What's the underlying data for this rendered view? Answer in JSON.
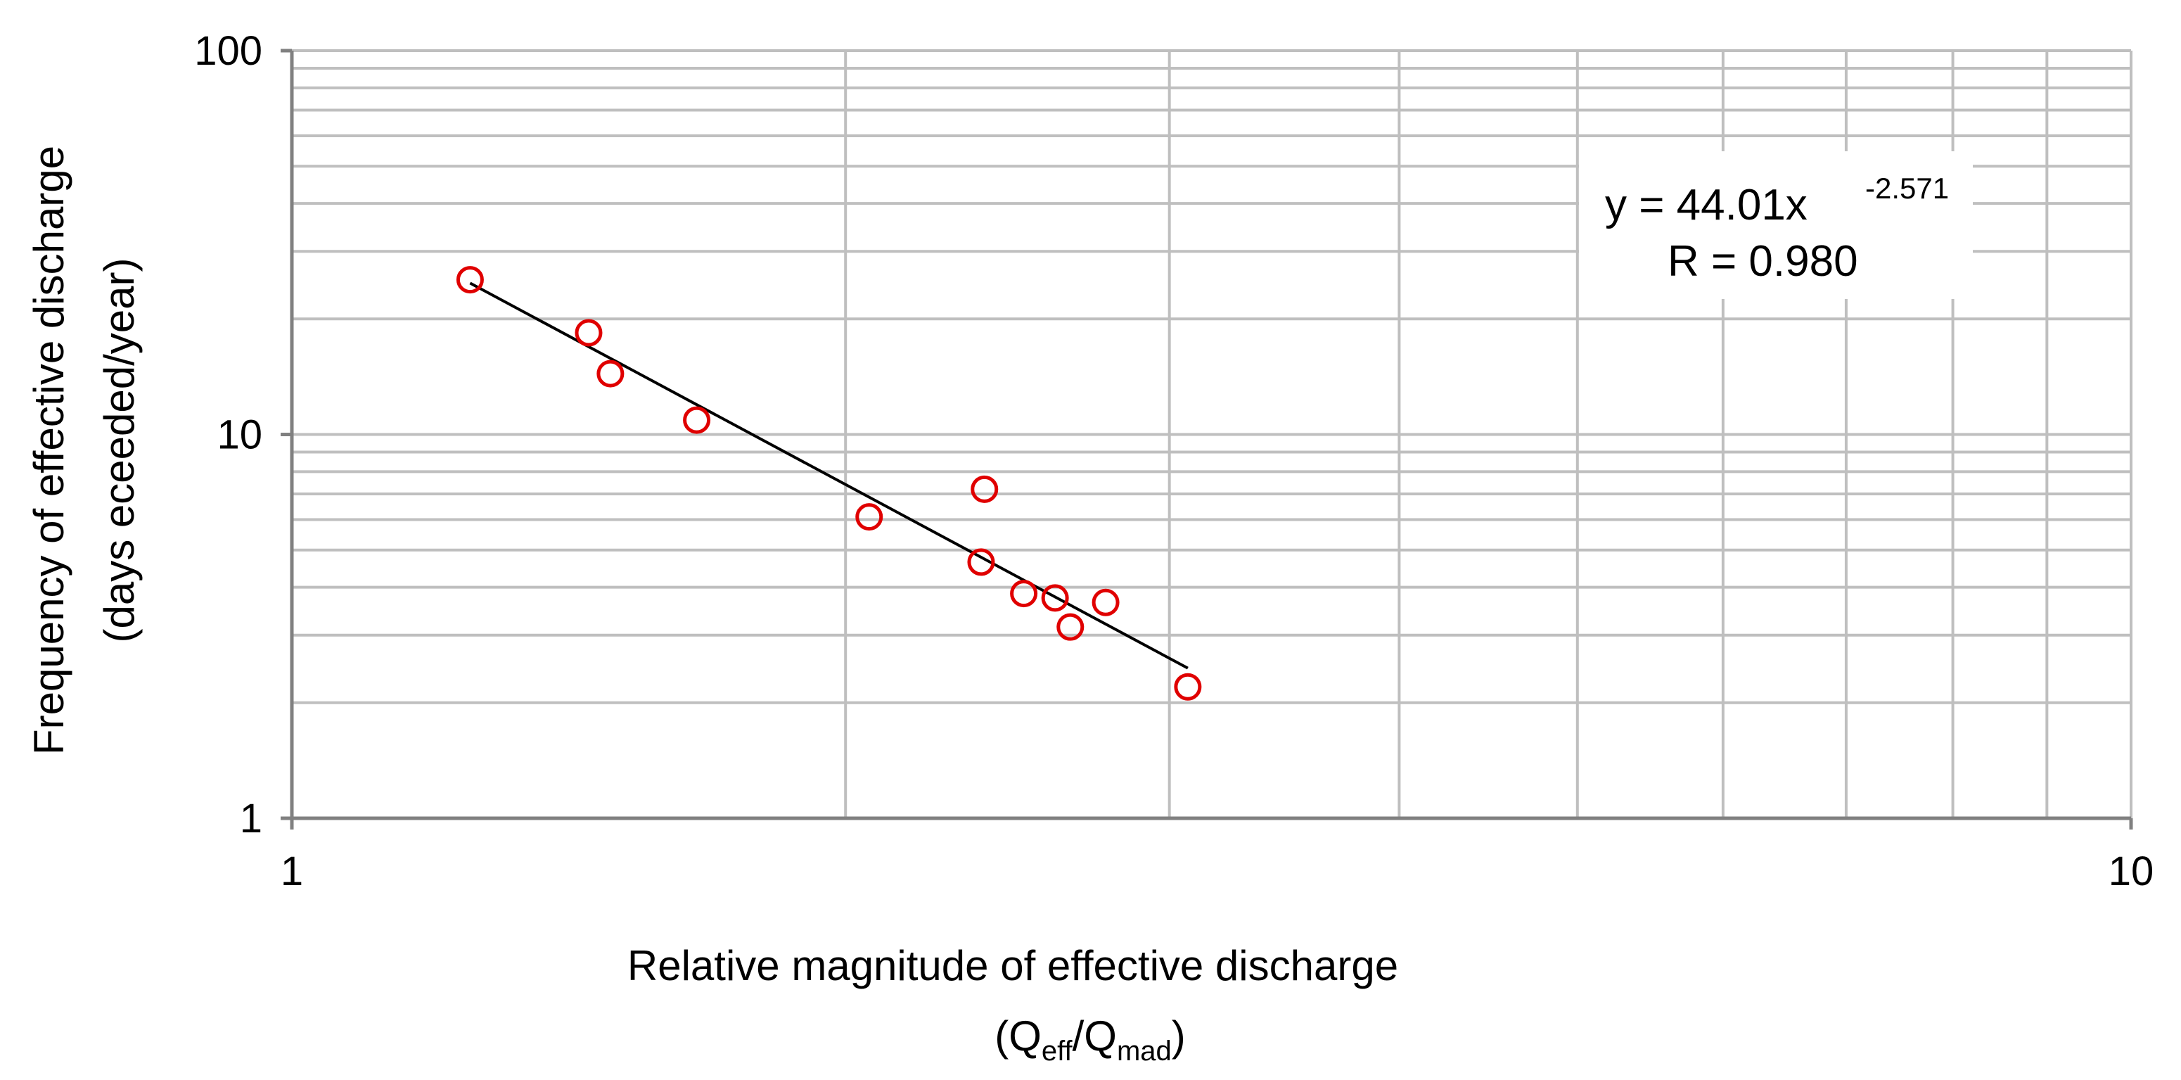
{
  "chart_data": {
    "type": "scatter",
    "x_scale": "log",
    "y_scale": "log",
    "xlim": [
      1,
      10
    ],
    "ylim": [
      1,
      100
    ],
    "x_ticks": [
      "1",
      "10"
    ],
    "y_ticks": [
      "1",
      "10",
      "100"
    ],
    "xlabel_line1": "Relative magnitude of effective discharge",
    "xlabel_line2": {
      "open": "(Q",
      "sub1": "eff",
      "mid": "/Q",
      "sub2": "mad",
      "close": ")"
    },
    "ylabel_line1": "Frequency of effective discharge",
    "ylabel_line2": "(days eceeded/year)",
    "grid": true,
    "points": [
      {
        "x": 1.25,
        "y": 25.3
      },
      {
        "x": 1.45,
        "y": 18.4
      },
      {
        "x": 1.49,
        "y": 14.4
      },
      {
        "x": 1.66,
        "y": 10.9
      },
      {
        "x": 2.06,
        "y": 6.1
      },
      {
        "x": 2.37,
        "y": 4.65
      },
      {
        "x": 2.38,
        "y": 7.2
      },
      {
        "x": 2.5,
        "y": 3.85
      },
      {
        "x": 2.6,
        "y": 3.75
      },
      {
        "x": 2.65,
        "y": 3.15
      },
      {
        "x": 2.77,
        "y": 3.65
      },
      {
        "x": 3.07,
        "y": 2.2
      }
    ],
    "trendline": {
      "type": "power",
      "a": 44.01,
      "b": -2.571,
      "x_range": [
        1.25,
        3.07
      ],
      "equation_text": "y = 44.01x",
      "equation_exponent": "-2.571",
      "r_text": "R = 0.980"
    },
    "colors": {
      "marker": "#e00000",
      "trendline": "#000000",
      "grid": "#bfbfbf"
    }
  }
}
